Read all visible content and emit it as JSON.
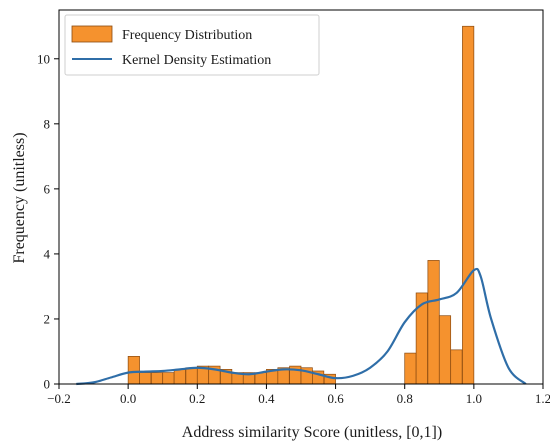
{
  "chart_data": {
    "type": "bar",
    "xlabel": "Address similarity   Score (unitless,  [0,1])",
    "ylabel": "Frequency (unitless)",
    "xlim": [
      -0.2,
      1.2
    ],
    "ylim": [
      0,
      11.5
    ],
    "x_ticks": [
      -0.2,
      0.0,
      0.2,
      0.4,
      0.6,
      0.8,
      1.0,
      1.2
    ],
    "x_tick_labels": [
      "−0.2",
      "0.0",
      "0.2",
      "0.4",
      "0.6",
      "0.8",
      "1.0",
      "1.2"
    ],
    "y_ticks": [
      0,
      2,
      4,
      6,
      8,
      10
    ],
    "y_tick_labels": [
      "0",
      "2",
      "4",
      "6",
      "8",
      "10"
    ],
    "grid": false,
    "legend_position": "top-left",
    "legend": [
      {
        "label": "Frequency Distribution",
        "kind": "patch",
        "color": "#f5922e"
      },
      {
        "label": "Kernel Density Estimation",
        "kind": "line",
        "color": "#2f6ea8"
      }
    ],
    "series": [
      {
        "name": "Frequency Distribution",
        "type": "histogram",
        "color": "#f5922e",
        "edge_color": "#8a4a10",
        "bin_width": 0.033,
        "bin_starts": [
          0.0,
          0.033,
          0.067,
          0.1,
          0.133,
          0.167,
          0.2,
          0.233,
          0.267,
          0.3,
          0.333,
          0.367,
          0.4,
          0.433,
          0.467,
          0.5,
          0.533,
          0.567,
          0.8,
          0.833,
          0.867,
          0.9,
          0.933,
          0.967
        ],
        "values": [
          0.85,
          0.35,
          0.35,
          0.35,
          0.45,
          0.5,
          0.55,
          0.55,
          0.45,
          0.35,
          0.35,
          0.35,
          0.45,
          0.5,
          0.55,
          0.5,
          0.4,
          0.3,
          0.95,
          2.8,
          3.8,
          2.1,
          1.05,
          11.0
        ]
      },
      {
        "name": "Kernel Density Estimation",
        "type": "line",
        "color": "#2f6ea8",
        "x": [
          -0.15,
          -0.1,
          -0.05,
          0.0,
          0.05,
          0.1,
          0.15,
          0.2,
          0.25,
          0.3,
          0.35,
          0.4,
          0.45,
          0.5,
          0.55,
          0.6,
          0.65,
          0.7,
          0.75,
          0.8,
          0.85,
          0.9,
          0.95,
          1.0,
          1.02,
          1.05,
          1.1,
          1.15
        ],
        "y": [
          0.0,
          0.05,
          0.2,
          0.35,
          0.38,
          0.4,
          0.45,
          0.5,
          0.45,
          0.35,
          0.3,
          0.38,
          0.45,
          0.42,
          0.3,
          0.18,
          0.25,
          0.5,
          1.0,
          1.9,
          2.45,
          2.6,
          2.8,
          3.5,
          3.3,
          2.0,
          0.5,
          0.0
        ]
      }
    ]
  }
}
